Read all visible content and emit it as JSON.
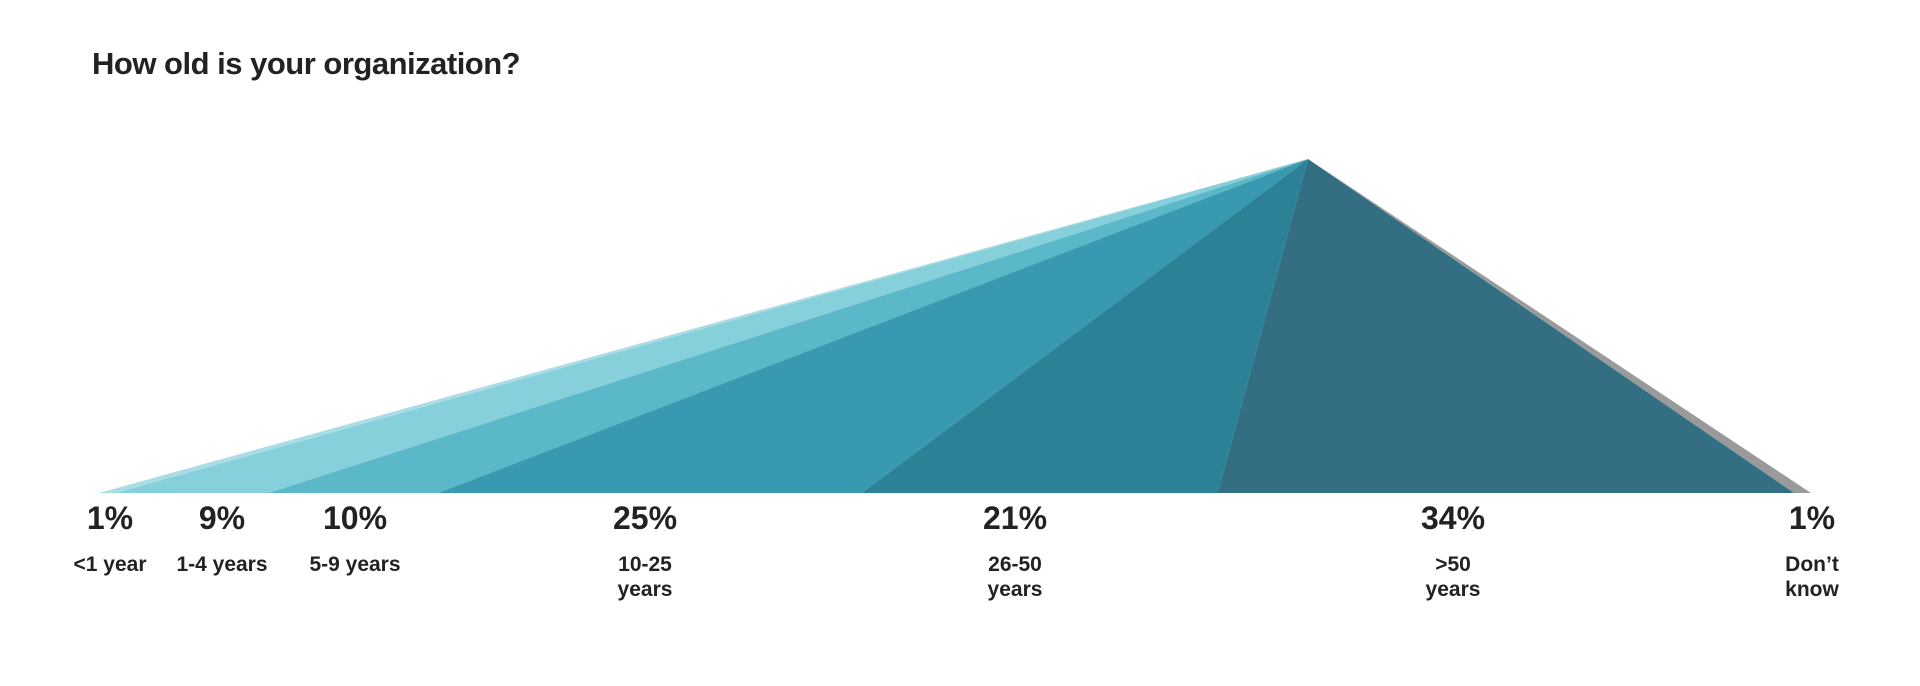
{
  "chart_data": {
    "type": "triangle",
    "title": "How old is your organization?",
    "categories": [
      "<1 year",
      "1-4 years",
      "5-9 years",
      "10-25 years",
      "26-50 years",
      ">50 years",
      "Don’t know"
    ],
    "values": [
      1,
      9,
      10,
      25,
      21,
      34,
      1
    ],
    "value_labels": [
      "1%",
      "9%",
      "10%",
      "25%",
      "21%",
      "34%",
      "1%"
    ],
    "colors": [
      "#a8dde6",
      "#86d0dc",
      "#5bb8c8",
      "#3899b0",
      "#2c8197",
      "#346e82",
      "#9a9a9a"
    ]
  }
}
